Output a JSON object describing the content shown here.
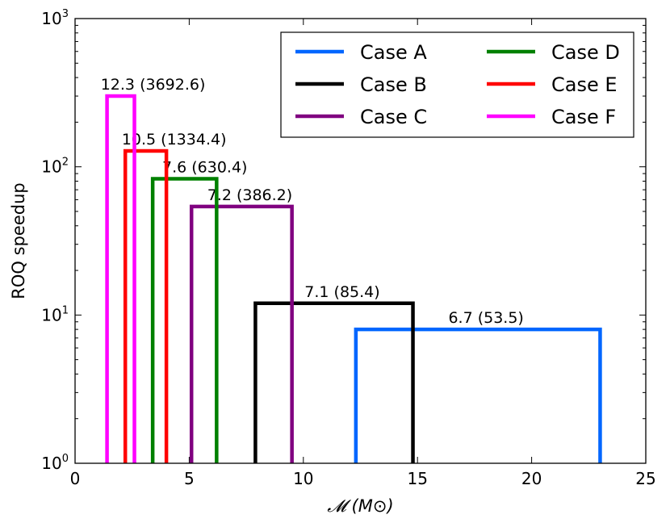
{
  "chart_data": {
    "type": "line",
    "ylabel": "ROQ speedup",
    "xlabel": "𝓜 (M⊙)",
    "xlim": [
      0,
      25
    ],
    "ylim": [
      1,
      1000
    ],
    "yscale": "log",
    "xticks": [
      0,
      5,
      10,
      15,
      20,
      25
    ],
    "yticks": [
      {
        "value": 1,
        "base": "10",
        "exp": "0"
      },
      {
        "value": 10,
        "base": "10",
        "exp": "1"
      },
      {
        "value": 100,
        "base": "10",
        "exp": "2"
      },
      {
        "value": 1000,
        "base": "10",
        "exp": "3"
      }
    ],
    "grid": false,
    "legend_position": "top-right",
    "series": [
      {
        "name": "Case A",
        "color": "#0066ff",
        "x_min": 12.3,
        "x_max": 23.0,
        "speedup": 8.0,
        "annotation": "6.7 (53.5)"
      },
      {
        "name": "Case B",
        "color": "#000000",
        "x_min": 7.9,
        "x_max": 14.8,
        "speedup": 12.0,
        "annotation": "7.1 (85.4)"
      },
      {
        "name": "Case C",
        "color": "#800080",
        "x_min": 5.1,
        "x_max": 9.5,
        "speedup": 54.0,
        "annotation": "7.2 (386.2)"
      },
      {
        "name": "Case D",
        "color": "#008000",
        "x_min": 3.4,
        "x_max": 6.2,
        "speedup": 83.0,
        "annotation": "7.6 (630.4)"
      },
      {
        "name": "Case E",
        "color": "#ff0000",
        "x_min": 2.2,
        "x_max": 4.0,
        "speedup": 128.0,
        "annotation": "10.5 (1334.4)"
      },
      {
        "name": "Case F",
        "color": "#ff00ff",
        "x_min": 1.4,
        "x_max": 2.6,
        "speedup": 300.0,
        "annotation": "12.3 (3692.6)"
      }
    ]
  }
}
